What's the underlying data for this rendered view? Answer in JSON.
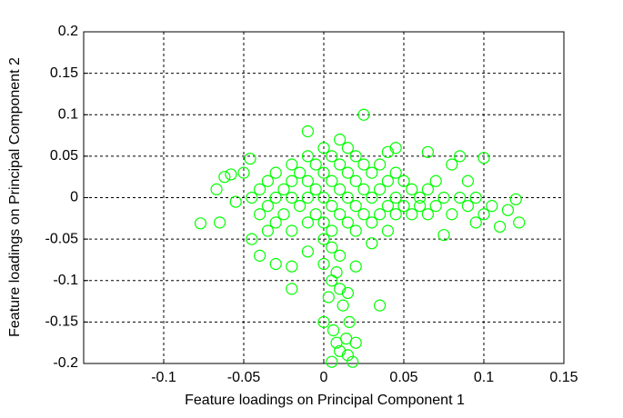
{
  "chart_data": {
    "type": "scatter",
    "x_label": "Feature loadings on Principal Component 1",
    "y_label": "Feature loadings on Principal Component 2",
    "color": "#00ff00",
    "xlim": [
      -0.15,
      0.15
    ],
    "xticks": [
      -0.1,
      -0.05,
      0,
      0.05,
      0.1,
      0.15
    ],
    "ylim": [
      -0.2,
      0.2
    ],
    "yticks": [
      -0.2,
      -0.15,
      -0.1,
      -0.05,
      0,
      0.05,
      0.1,
      0.15,
      0.2
    ],
    "grid": true,
    "x": [
      -0.077,
      -0.067,
      -0.065,
      -0.062,
      -0.058,
      -0.055,
      -0.05,
      -0.046,
      -0.045,
      -0.04,
      -0.035,
      -0.03,
      -0.02,
      -0.02,
      -0.01,
      -0.01,
      0.025,
      0.035,
      0.1,
      0.12,
      0.122,
      0.11,
      0.115,
      0.105,
      0.095,
      0.09,
      0.085,
      0.08,
      0.075,
      0.07,
      0.065,
      0.045,
      0.04,
      0.03,
      0.02,
      0,
      0,
      0.005,
      0.003,
      0.008,
      0.01,
      0.012,
      0.015,
      0,
      0.006,
      0.008,
      0.01,
      0.015,
      0.018,
      0.016,
      0.014,
      0.005,
      0.02,
      0.01,
      0.005,
      -0.045,
      -0.04,
      -0.04,
      -0.035,
      -0.035,
      -0.03,
      -0.03,
      -0.03,
      -0.025,
      -0.025,
      -0.02,
      -0.02,
      -0.02,
      -0.02,
      -0.015,
      -0.015,
      -0.01,
      -0.01,
      -0.01,
      -0.01,
      -0.005,
      -0.005,
      -0.005,
      0,
      0,
      0,
      0,
      0.005,
      0.005,
      0.005,
      0.005,
      0.01,
      0.01,
      0.01,
      0.01,
      0.015,
      0.015,
      0.015,
      0.015,
      0.02,
      0.02,
      0.02,
      0.02,
      0.025,
      0.025,
      0.025,
      0.03,
      0.03,
      0.03,
      0.035,
      0.035,
      0.035,
      0.04,
      0.04,
      0.04,
      0.045,
      0.045,
      0.045,
      0.05,
      0.05,
      0.055,
      0.055,
      0.06,
      0.06,
      0.065,
      0.065,
      0.07,
      0.075,
      0.08,
      0.085,
      0.09,
      0.095,
      0.1
    ],
    "values": [
      -0.031,
      0.01,
      -0.03,
      0.025,
      0.028,
      -0.005,
      0.03,
      0.047,
      -0.05,
      -0.07,
      -0.04,
      -0.08,
      -0.083,
      -0.11,
      -0.065,
      0.08,
      0.1,
      -0.13,
      0.048,
      -0.002,
      -0.03,
      -0.035,
      -0.015,
      -0.01,
      -0.03,
      0.02,
      0.05,
      0.04,
      -0.045,
      0.02,
      0.055,
      0.06,
      0.055,
      -0.055,
      -0.083,
      -0.05,
      -0.08,
      -0.1,
      -0.12,
      -0.09,
      -0.11,
      -0.13,
      -0.115,
      -0.15,
      -0.16,
      -0.175,
      -0.185,
      -0.19,
      -0.198,
      -0.15,
      -0.17,
      -0.198,
      -0.175,
      -0.07,
      -0.06,
      0,
      0.01,
      -0.02,
      0.02,
      -0.01,
      0.03,
      0,
      -0.03,
      0.01,
      -0.02,
      0.04,
      0.02,
      0,
      -0.04,
      0.03,
      -0.01,
      0.05,
      0.02,
      0,
      -0.03,
      0.04,
      0.01,
      -0.02,
      0.06,
      0.03,
      0,
      -0.03,
      0.05,
      0.02,
      -0.01,
      -0.04,
      0.07,
      0.04,
      0.01,
      -0.02,
      0.06,
      0.03,
      0,
      -0.03,
      0.05,
      0.02,
      -0.01,
      -0.04,
      0.04,
      0.01,
      -0.02,
      0.03,
      0,
      -0.03,
      0.04,
      0.01,
      -0.02,
      0.02,
      -0.01,
      -0.04,
      0.03,
      0,
      -0.02,
      0.02,
      -0.01,
      0.01,
      -0.02,
      0,
      -0.01,
      0.01,
      -0.02,
      -0.01,
      0,
      -0.02,
      0,
      -0.01,
      0,
      -0.02
    ]
  }
}
